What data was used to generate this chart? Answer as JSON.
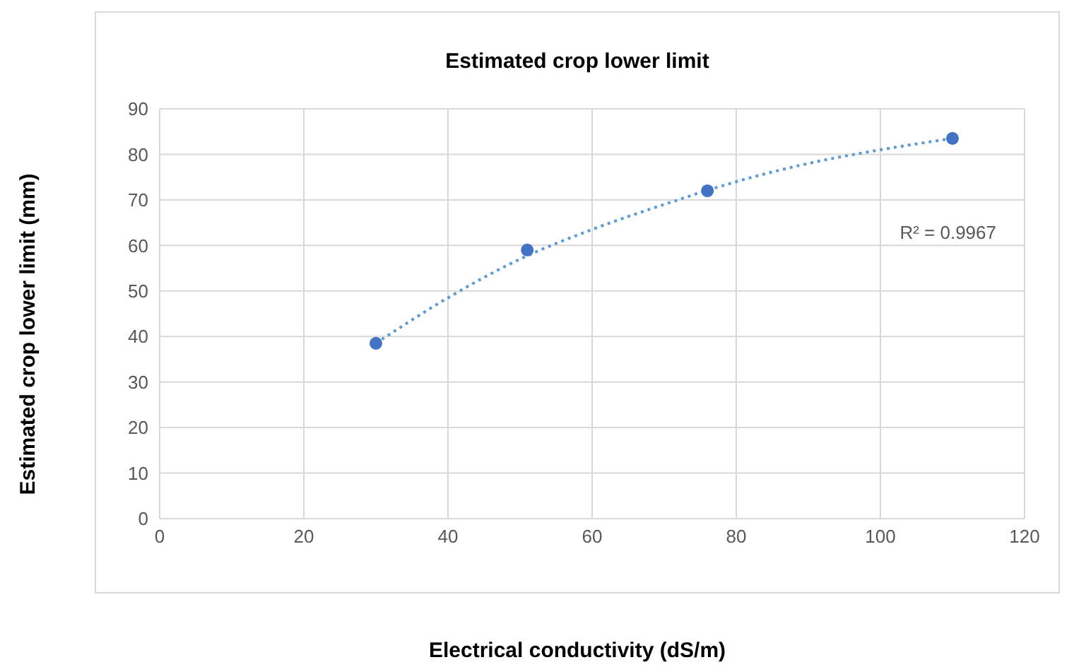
{
  "chart_data": {
    "type": "scatter",
    "title": "Estimated crop lower limit",
    "xlabel": "Electrical conductivity (dS/m)",
    "ylabel": "Estimated crop lower limit (mm)",
    "series": [
      {
        "color": "#4472c4",
        "marker": "circle",
        "x": [
          30,
          51,
          76,
          110
        ],
        "values": [
          38.5,
          59,
          72,
          83.5
        ]
      },
      {
        "type": "line",
        "color": "#5b9bd5",
        "line_style": "dotted",
        "marker": "none",
        "x": [
          30,
          40,
          50,
          60,
          70,
          80,
          90,
          100,
          110
        ],
        "values": [
          38.5,
          48.5,
          57,
          63.5,
          69,
          74,
          78,
          81,
          83.5
        ]
      }
    ],
    "annotations": [
      "R² = 0.9967"
    ],
    "xlim": [
      0,
      120
    ],
    "xticks": [
      0,
      20,
      40,
      60,
      80,
      100,
      120
    ],
    "ylim": [
      0,
      90
    ],
    "yticks": [
      0,
      10,
      20,
      30,
      40,
      50,
      60,
      70,
      80,
      90
    ],
    "grid": true
  }
}
